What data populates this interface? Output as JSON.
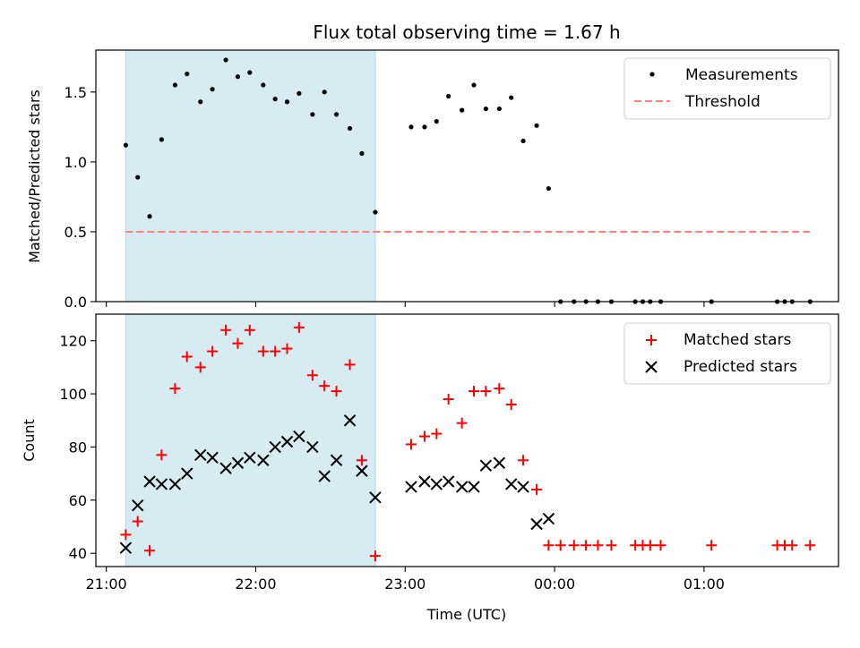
{
  "chart_data": {
    "type": "scatter",
    "title": "Flux total observing time = 1.67 h",
    "xlabel": "Time (UTC)",
    "x_range_hours": [
      20.93,
      25.9
    ],
    "x_ticks": [
      {
        "t": 21,
        "label": "21:00"
      },
      {
        "t": 22,
        "label": "22:00"
      },
      {
        "t": 23,
        "label": "23:00"
      },
      {
        "t": 24,
        "label": "00:00"
      },
      {
        "t": 25,
        "label": "01:00"
      }
    ],
    "highlight_span_hours": [
      21.13,
      22.8
    ],
    "highlight_color": "#add8e6",
    "panels": [
      {
        "ylabel": "Matched/Predicted stars",
        "ylim": [
          0,
          1.8
        ],
        "yticks": [
          0.0,
          0.5,
          1.0,
          1.5
        ],
        "ytick_labels": [
          "0.0",
          "0.5",
          "1.0",
          "1.5"
        ],
        "legend_position": "top-right",
        "series": [
          {
            "name": "Measurements",
            "marker": "dot",
            "color": "#000000",
            "points": [
              [
                21.13,
                1.12
              ],
              [
                21.21,
                0.89
              ],
              [
                21.29,
                0.61
              ],
              [
                21.37,
                1.16
              ],
              [
                21.46,
                1.55
              ],
              [
                21.54,
                1.63
              ],
              [
                21.63,
                1.43
              ],
              [
                21.71,
                1.52
              ],
              [
                21.8,
                1.73
              ],
              [
                21.88,
                1.61
              ],
              [
                21.96,
                1.64
              ],
              [
                22.05,
                1.55
              ],
              [
                22.13,
                1.45
              ],
              [
                22.21,
                1.43
              ],
              [
                22.29,
                1.49
              ],
              [
                22.38,
                1.34
              ],
              [
                22.46,
                1.5
              ],
              [
                22.54,
                1.34
              ],
              [
                22.63,
                1.24
              ],
              [
                22.71,
                1.06
              ],
              [
                22.8,
                0.64
              ],
              [
                23.04,
                1.25
              ],
              [
                23.13,
                1.25
              ],
              [
                23.21,
                1.29
              ],
              [
                23.29,
                1.47
              ],
              [
                23.38,
                1.37
              ],
              [
                23.46,
                1.55
              ],
              [
                23.54,
                1.38
              ],
              [
                23.63,
                1.38
              ],
              [
                23.71,
                1.46
              ],
              [
                23.79,
                1.15
              ],
              [
                23.88,
                1.26
              ],
              [
                23.96,
                0.81
              ],
              [
                24.04,
                0.0
              ],
              [
                24.13,
                0.0
              ],
              [
                24.21,
                0.0
              ],
              [
                24.29,
                0.0
              ],
              [
                24.38,
                0.0
              ],
              [
                24.54,
                0.0
              ],
              [
                24.59,
                0.0
              ],
              [
                24.64,
                0.0
              ],
              [
                24.71,
                0.0
              ],
              [
                25.05,
                0.0
              ],
              [
                25.49,
                0.0
              ],
              [
                25.54,
                0.0
              ],
              [
                25.59,
                0.0
              ],
              [
                25.71,
                0.0
              ]
            ]
          },
          {
            "name": "Threshold",
            "marker": "dashed-line",
            "color": "#ff7f7f",
            "points": [
              [
                21.13,
                0.5
              ],
              [
                25.71,
                0.5
              ]
            ]
          }
        ]
      },
      {
        "ylabel": "Count",
        "ylim": [
          35,
          130
        ],
        "yticks": [
          40,
          60,
          80,
          100,
          120
        ],
        "ytick_labels": [
          "40",
          "60",
          "80",
          "100",
          "120"
        ],
        "legend_position": "top-right",
        "series": [
          {
            "name": "Matched stars",
            "marker": "plus",
            "color": "#ff0000",
            "points": [
              [
                21.13,
                47
              ],
              [
                21.21,
                52
              ],
              [
                21.29,
                41
              ],
              [
                21.37,
                77
              ],
              [
                21.46,
                102
              ],
              [
                21.54,
                114
              ],
              [
                21.63,
                110
              ],
              [
                21.71,
                116
              ],
              [
                21.8,
                124
              ],
              [
                21.88,
                119
              ],
              [
                21.96,
                124
              ],
              [
                22.05,
                116
              ],
              [
                22.13,
                116
              ],
              [
                22.21,
                117
              ],
              [
                22.29,
                125
              ],
              [
                22.38,
                107
              ],
              [
                22.46,
                103
              ],
              [
                22.54,
                101
              ],
              [
                22.63,
                111
              ],
              [
                22.71,
                75
              ],
              [
                22.8,
                39
              ],
              [
                23.04,
                81
              ],
              [
                23.13,
                84
              ],
              [
                23.21,
                85
              ],
              [
                23.29,
                98
              ],
              [
                23.38,
                89
              ],
              [
                23.46,
                101
              ],
              [
                23.54,
                101
              ],
              [
                23.63,
                102
              ],
              [
                23.71,
                96
              ],
              [
                23.79,
                75
              ],
              [
                23.88,
                64
              ],
              [
                23.96,
                43
              ],
              [
                24.04,
                43
              ],
              [
                24.13,
                43
              ],
              [
                24.21,
                43
              ],
              [
                24.29,
                43
              ],
              [
                24.38,
                43
              ],
              [
                24.54,
                43
              ],
              [
                24.59,
                43
              ],
              [
                24.64,
                43
              ],
              [
                24.71,
                43
              ],
              [
                25.05,
                43
              ],
              [
                25.49,
                43
              ],
              [
                25.54,
                43
              ],
              [
                25.59,
                43
              ],
              [
                25.71,
                43
              ]
            ]
          },
          {
            "name": "Predicted stars",
            "marker": "x",
            "color": "#000000",
            "points": [
              [
                21.13,
                42
              ],
              [
                21.21,
                58
              ],
              [
                21.29,
                67
              ],
              [
                21.37,
                66
              ],
              [
                21.46,
                66
              ],
              [
                21.54,
                70
              ],
              [
                21.63,
                77
              ],
              [
                21.71,
                76
              ],
              [
                21.8,
                72
              ],
              [
                21.88,
                74
              ],
              [
                21.96,
                76
              ],
              [
                22.05,
                75
              ],
              [
                22.13,
                80
              ],
              [
                22.21,
                82
              ],
              [
                22.29,
                84
              ],
              [
                22.38,
                80
              ],
              [
                22.46,
                69
              ],
              [
                22.54,
                75
              ],
              [
                22.63,
                90
              ],
              [
                22.71,
                71
              ],
              [
                22.8,
                61
              ],
              [
                23.04,
                65
              ],
              [
                23.13,
                67
              ],
              [
                23.21,
                66
              ],
              [
                23.29,
                67
              ],
              [
                23.38,
                65
              ],
              [
                23.46,
                65
              ],
              [
                23.54,
                73
              ],
              [
                23.63,
                74
              ],
              [
                23.71,
                66
              ],
              [
                23.79,
                65
              ],
              [
                23.88,
                51
              ],
              [
                23.96,
                53
              ]
            ]
          }
        ]
      }
    ]
  }
}
